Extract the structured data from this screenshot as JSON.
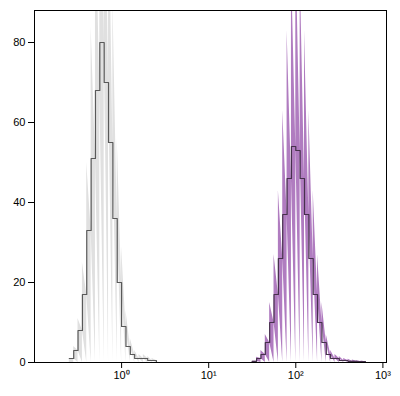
{
  "chart_data": {
    "type": "histogram",
    "log": "x",
    "grid": false,
    "xlim": [
      0.1,
      1100
    ],
    "ylim": [
      0,
      88
    ],
    "xticks": [
      {
        "value": 1,
        "label": "10⁰"
      },
      {
        "value": 10,
        "label": "10¹"
      },
      {
        "value": 100,
        "label": "10²"
      },
      {
        "value": 1000,
        "label": "10³"
      }
    ],
    "yticks": [
      0,
      20,
      40,
      60,
      80
    ],
    "series": [
      {
        "color": "#e0e0e0",
        "bins": [
          0.251,
          0.282,
          0.316,
          0.355,
          0.398,
          0.447,
          0.501,
          0.562,
          0.631,
          0.708,
          0.794,
          0.891,
          1,
          1.122,
          1.259,
          1.413,
          1.585,
          1.778,
          1.995,
          2.239,
          2.512,
          2.818,
          3.162
        ],
        "values": [
          1,
          3,
          8,
          17,
          33,
          51,
          68,
          80,
          70,
          55,
          36,
          20,
          9,
          4,
          2,
          1,
          1,
          1,
          0.5,
          0.5,
          0,
          0
        ]
      },
      {
        "color": "#b07cc0",
        "bins": [
          25.12,
          28.18,
          31.62,
          35.48,
          39.81,
          44.67,
          50.12,
          56.23,
          63.1,
          70.79,
          79.43,
          89.13,
          100,
          112.2,
          125.9,
          141.3,
          158.5,
          177.8,
          199.5,
          223.9,
          251.2,
          281.8,
          316.2,
          354.8,
          398.1,
          446.7,
          501.2,
          562.3,
          631,
          707.9,
          794.3
        ],
        "values": [
          0,
          0,
          0.3,
          1,
          2,
          5,
          10,
          17,
          26,
          37,
          46,
          54,
          53,
          46,
          37,
          26,
          17,
          10,
          5,
          2,
          1,
          1,
          0.5,
          0.5,
          0.3,
          0.3,
          0.2,
          0.2,
          0,
          0
        ]
      }
    ]
  }
}
